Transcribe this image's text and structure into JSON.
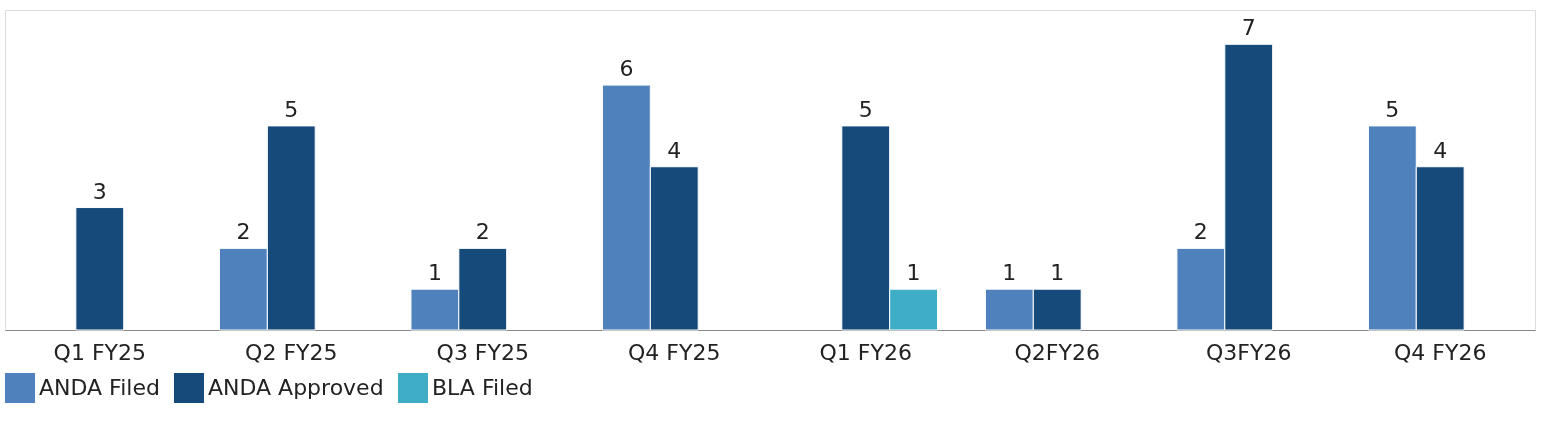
{
  "chart_data": {
    "type": "bar",
    "categories": [
      "Q1 FY25",
      "Q2 FY25",
      "Q3 FY25",
      "Q4 FY25",
      "Q1 FY26",
      "Q2FY26",
      "Q3FY26",
      "Q4 FY26"
    ],
    "series": [
      {
        "name": "ANDA Filed",
        "color": "#4f81bd",
        "values": [
          null,
          2,
          1,
          6,
          null,
          1,
          2,
          5
        ]
      },
      {
        "name": "ANDA Approved",
        "color": "#164a7b",
        "values": [
          3,
          5,
          2,
          4,
          5,
          1,
          7,
          4
        ]
      },
      {
        "name": "BLA Filed",
        "color": "#3eadc5",
        "values": [
          null,
          null,
          null,
          null,
          1,
          null,
          null,
          null
        ]
      }
    ],
    "data_labels": true,
    "legend": "bottom",
    "grid": false,
    "tick_labels": "x"
  }
}
